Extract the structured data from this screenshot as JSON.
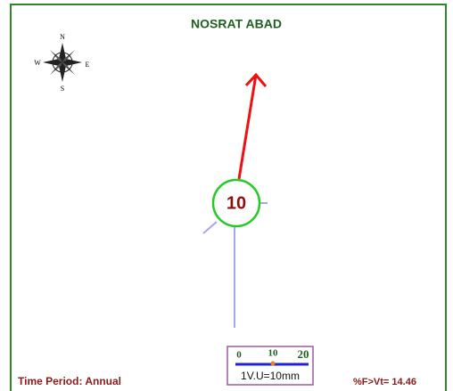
{
  "title": "NOSRAT ABAD",
  "compass": {
    "n": "N",
    "s": "S",
    "w": "W",
    "e": "E"
  },
  "center_label": "10",
  "scale": {
    "ticks": [
      "0",
      "10",
      "20"
    ],
    "unit": "1V.U=10mm"
  },
  "footer": {
    "left": "Time Period: Annual",
    "right": "%F>Vt= 14.46"
  }
}
